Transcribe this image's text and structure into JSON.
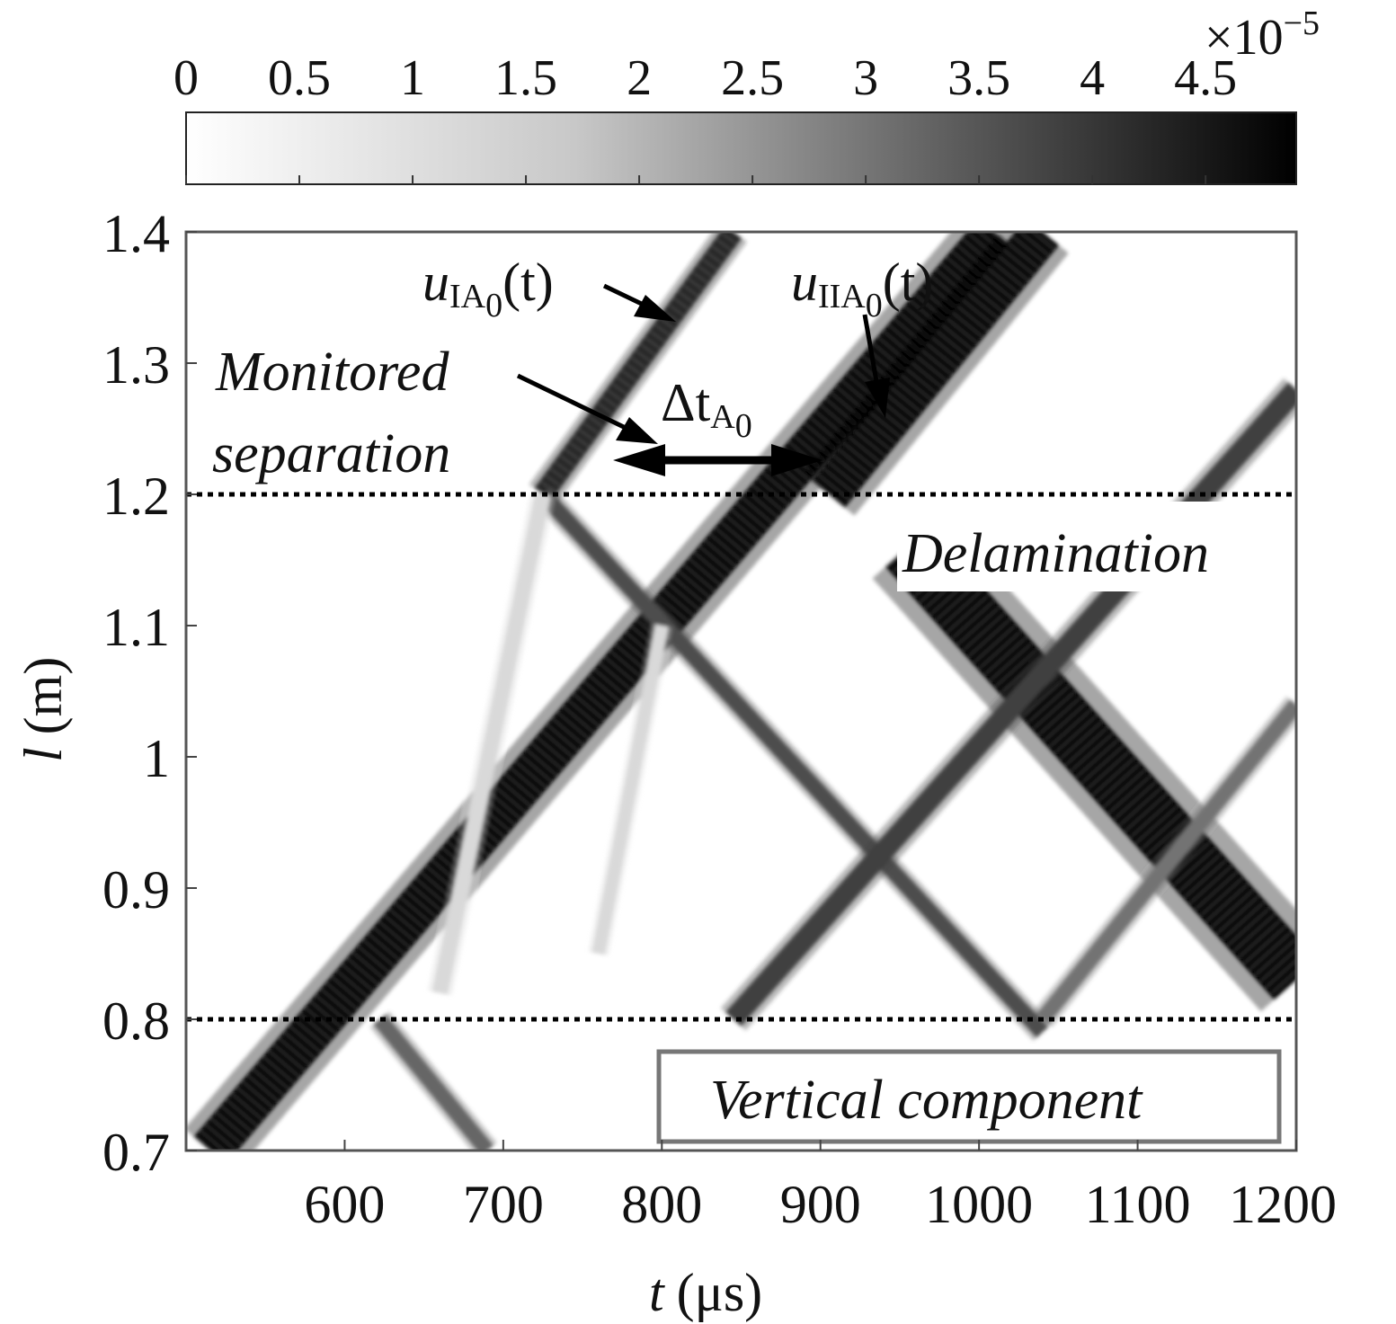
{
  "chart_data": {
    "type": "heatmap",
    "title": "",
    "xlabel_var": "t",
    "xlabel_unit": "(μs)",
    "ylabel_var": "l",
    "ylabel_unit": "(m)",
    "xlim": [
      500,
      1200
    ],
    "ylim": [
      0.7,
      1.4
    ],
    "x_ticks": [
      600,
      700,
      800,
      900,
      1000,
      1100,
      1200
    ],
    "x_tick_labels": [
      "600",
      "700",
      "800",
      "900",
      "1000",
      "1100",
      "1200"
    ],
    "y_ticks": [
      0.7,
      0.8,
      0.9,
      1.0,
      1.1,
      1.2,
      1.3,
      1.4
    ],
    "y_tick_labels": [
      "0.7",
      "0.8",
      "0.9",
      "1",
      "1.1",
      "1.2",
      "1.3",
      "1.4"
    ],
    "colorbar": {
      "range": [
        0,
        4.9
      ],
      "ticks": [
        0,
        0.5,
        1,
        1.5,
        2,
        2.5,
        3,
        3.5,
        4,
        4.5
      ],
      "tick_labels": [
        "0",
        "0.5",
        "1",
        "1.5",
        "2",
        "2.5",
        "3",
        "3.5",
        "4",
        "4.5"
      ],
      "multiplier": "×10",
      "exponent": "−5",
      "colormap": "white-to-black"
    },
    "reference_lines": [
      {
        "axis": "y",
        "value": 1.2,
        "style": "dotted"
      },
      {
        "axis": "y",
        "value": 0.8,
        "style": "dotted"
      }
    ],
    "wave_bands": [
      {
        "id": "incident-main",
        "from": [
          515,
          0.7
        ],
        "to": [
          1010,
          1.4
        ],
        "intensity": 1.0,
        "width": 0.032
      },
      {
        "id": "uIA0-branch",
        "from": [
          725,
          1.2
        ],
        "to": [
          845,
          1.4
        ],
        "intensity": 0.85,
        "width": 0.016
      },
      {
        "id": "uIA0-reflect",
        "from": [
          725,
          1.2
        ],
        "to": [
          1040,
          0.79
        ],
        "intensity": 0.7,
        "width": 0.012
      },
      {
        "id": "uIIA0-branch",
        "from": [
          905,
          1.2
        ],
        "to": [
          1040,
          1.4
        ],
        "intensity": 1.0,
        "width": 0.032
      },
      {
        "id": "delam-reflect",
        "from": [
          955,
          1.16
        ],
        "to": [
          1200,
          0.83
        ],
        "intensity": 1.0,
        "width": 0.045
      },
      {
        "id": "secondary-up",
        "from": [
          845,
          0.8
        ],
        "to": [
          1200,
          1.28
        ],
        "intensity": 0.75,
        "width": 0.016
      },
      {
        "id": "lower-reflect",
        "from": [
          622,
          0.8
        ],
        "to": [
          690,
          0.7
        ],
        "intensity": 0.6,
        "width": 0.012
      },
      {
        "id": "lower-cross",
        "from": [
          1040,
          0.8
        ],
        "to": [
          1200,
          1.04
        ],
        "intensity": 0.55,
        "width": 0.012
      },
      {
        "id": "faint-left",
        "from": [
          660,
          0.82
        ],
        "to": [
          725,
          1.2
        ],
        "intensity": 0.15,
        "width": 0.012
      },
      {
        "id": "faint-mid",
        "from": [
          760,
          0.85
        ],
        "to": [
          800,
          1.1
        ],
        "intensity": 0.15,
        "width": 0.01
      }
    ],
    "annotations": {
      "uIA0": {
        "var": "u",
        "sub": "IA",
        "subsub": "0",
        "arg": "(t)"
      },
      "uIIA0": {
        "var": "u",
        "sub": "IIA",
        "subsub": "0",
        "arg": "(t)"
      },
      "delta_t": {
        "symbol": "Δt",
        "sub": "A",
        "subsub": "0"
      },
      "monitored": [
        "Monitored",
        "separation"
      ],
      "delamination": "Delamination",
      "vertical_component": "Vertical component"
    },
    "legend": "none",
    "grid": false
  }
}
